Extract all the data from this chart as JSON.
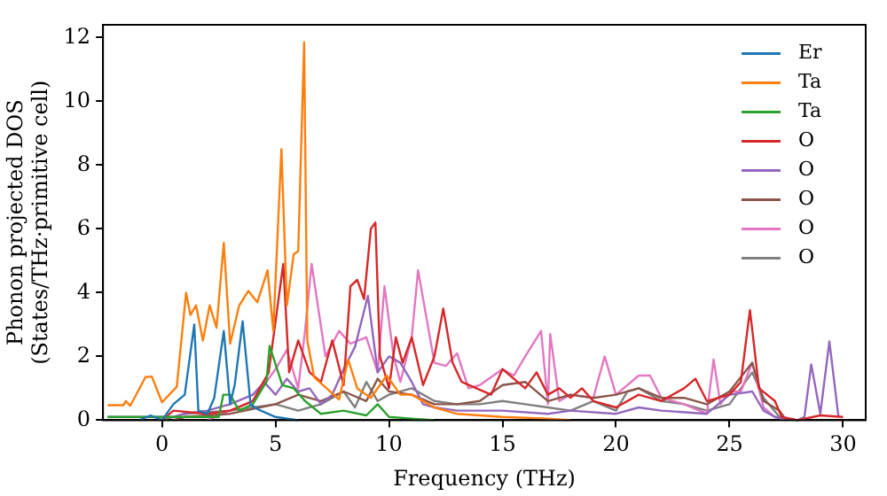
{
  "chart_data": {
    "type": "line",
    "xlabel": "Frequency (THz)",
    "ylabel": "Phonon projected DOS\n(States/THz·primitive cell)",
    "xlim": [
      -2.6,
      31
    ],
    "ylim": [
      0,
      12.4
    ],
    "xticks": [
      0,
      5,
      10,
      15,
      20,
      25,
      30
    ],
    "yticks": [
      0,
      2,
      4,
      6,
      8,
      10,
      12
    ],
    "legend": "top right",
    "marker": "none",
    "line_style": "solid",
    "series": [
      {
        "name": "Er",
        "color": "#1f77b4",
        "x": [
          -1,
          -0.5,
          0,
          0.5,
          1,
          1.42,
          1.6,
          2,
          2.3,
          2.72,
          3,
          3.2,
          3.55,
          3.9,
          4.2,
          5,
          6
        ],
        "values": [
          0,
          0.15,
          0,
          0.5,
          0.8,
          3.0,
          0.3,
          0.2,
          0.7,
          2.8,
          0.5,
          1.1,
          3.1,
          0.5,
          0.35,
          0.1,
          0
        ]
      },
      {
        "name": "Ta",
        "color": "#ff7f0e",
        "x": [
          -2.4,
          -1.7,
          -1.6,
          -1.4,
          -0.73,
          -0.45,
          0,
          0.65,
          1.06,
          1.25,
          1.5,
          1.8,
          2.1,
          2.4,
          2.72,
          3,
          3.4,
          3.8,
          4.2,
          4.65,
          4.9,
          5.26,
          5.5,
          5.8,
          6,
          6.26,
          6.4,
          6.7,
          7.25,
          7.8,
          8.2,
          8.6,
          9.2,
          9.9,
          10.5,
          11,
          12,
          13,
          15,
          17,
          18
        ],
        "values": [
          0.47,
          0.47,
          0.6,
          0.45,
          1.35,
          1.37,
          0.56,
          1.05,
          4.0,
          3.3,
          3.6,
          2.5,
          3.6,
          2.9,
          5.56,
          2.4,
          3.6,
          4.05,
          3.7,
          4.7,
          2.8,
          8.5,
          3.6,
          5.2,
          5.3,
          11.85,
          2.5,
          1.35,
          1.0,
          0.65,
          1.9,
          1.0,
          0.7,
          1.4,
          0.8,
          0.8,
          0.4,
          0.2,
          0.1,
          0.05,
          0
        ]
      },
      {
        "name": "Ta",
        "color": "#2ca02c",
        "x": [
          -2.4,
          2.5,
          2.7,
          3,
          3.4,
          4,
          4.6,
          4.74,
          5.3,
          5.8,
          6.3,
          7,
          8,
          9,
          9.5,
          10,
          11,
          12
        ],
        "values": [
          0.1,
          0.1,
          0.8,
          0.8,
          0.3,
          0.5,
          1.2,
          2.33,
          1.1,
          1.0,
          0.6,
          0.2,
          0.3,
          0.15,
          0.5,
          0.1,
          0.05,
          0
        ]
      },
      {
        "name": "O",
        "color": "#d62728",
        "x": [
          0,
          0.5,
          2,
          3,
          4,
          4.7,
          5.34,
          5.6,
          6,
          6.5,
          7,
          7.5,
          8,
          8.3,
          8.6,
          8.9,
          9.2,
          9.4,
          9.6,
          10,
          10.3,
          10.6,
          11,
          11.5,
          12,
          12.39,
          12.8,
          13.2,
          14.5,
          15,
          16,
          16.5,
          17,
          17.5,
          18,
          18.5,
          19,
          20,
          21,
          22,
          23,
          23.5,
          24,
          25,
          25.5,
          25.9,
          26.3,
          27,
          27.3,
          28,
          29,
          30
        ],
        "values": [
          0,
          0.3,
          0.2,
          0.3,
          0.6,
          1.5,
          4.9,
          1.5,
          2.5,
          1.5,
          1.2,
          2.5,
          1.1,
          4.2,
          4.4,
          3.8,
          6.0,
          6.2,
          2.0,
          1.0,
          2.6,
          1.8,
          2.6,
          1.1,
          2.0,
          3.5,
          1.8,
          1.2,
          0.8,
          1.6,
          1.0,
          1.5,
          0.8,
          1.0,
          0.7,
          1.0,
          0.6,
          0.4,
          0.8,
          0.6,
          1.0,
          1.3,
          0.6,
          0.8,
          1.2,
          3.45,
          1.0,
          0.6,
          0.1,
          0,
          0.15,
          0.1
        ]
      },
      {
        "name": "O",
        "color": "#9467bd",
        "x": [
          -2.4,
          0.5,
          1,
          2,
          3,
          4,
          4.5,
          5,
          5.5,
          6,
          6.5,
          7,
          7.5,
          8,
          8.5,
          9.07,
          9.5,
          10,
          10.5,
          11,
          11.5,
          12,
          13,
          15,
          17,
          18,
          20,
          21,
          22,
          24,
          25,
          26,
          26.5,
          27,
          28,
          28.3,
          28.6,
          29,
          29.4,
          29.8
        ],
        "values": [
          0.1,
          0.1,
          0.2,
          0.3,
          0.5,
          0.8,
          1.2,
          0.8,
          1.3,
          0.9,
          1.0,
          0.5,
          0.8,
          1.6,
          2.3,
          3.9,
          1.5,
          2.0,
          1.8,
          1.2,
          0.5,
          0.4,
          0.3,
          0.3,
          0.2,
          0.3,
          0.2,
          0.4,
          0.3,
          0.2,
          0.8,
          0.9,
          0.3,
          0.1,
          0,
          0.1,
          1.75,
          0.2,
          2.47,
          0.1
        ]
      },
      {
        "name": "O",
        "color": "#8c564b",
        "x": [
          0.5,
          1,
          3,
          5,
          6,
          7,
          8,
          9,
          9.5,
          10,
          11,
          12,
          13,
          14,
          15,
          16,
          17,
          18,
          19,
          20,
          21,
          22,
          23,
          24,
          25,
          26,
          26.5,
          27.2,
          27.5
        ],
        "values": [
          0,
          0.1,
          0.2,
          0.5,
          0.8,
          0.6,
          0.9,
          0.6,
          1.3,
          0.9,
          0.8,
          0.5,
          0.5,
          0.6,
          1.1,
          1.2,
          0.6,
          0.8,
          0.7,
          0.8,
          1.0,
          0.7,
          0.7,
          0.5,
          0.9,
          1.8,
          0.6,
          0.3,
          0
        ]
      },
      {
        "name": "O",
        "color": "#e377c2",
        "x": [
          2,
          3,
          4,
          5,
          5.5,
          6,
          6.3,
          6.59,
          7.2,
          7.8,
          8.3,
          9,
          9.5,
          9.8,
          10.2,
          10.5,
          11,
          11.28,
          12,
          12.5,
          13,
          13.5,
          14,
          15,
          15.5,
          16,
          16.7,
          17,
          17.1,
          17.5,
          18,
          19,
          19.5,
          20,
          21,
          21.5,
          22,
          23,
          24,
          24.3,
          24.6,
          25,
          25.5,
          26,
          26.5,
          27,
          27.5
        ],
        "values": [
          0,
          0.3,
          0.6,
          1.6,
          2.2,
          1.0,
          2.8,
          4.9,
          2.0,
          2.8,
          2.4,
          2.6,
          1.5,
          4.2,
          2.0,
          1.2,
          2.6,
          4.7,
          1.8,
          1.7,
          2.1,
          1.0,
          1.1,
          1.6,
          1.4,
          2.0,
          2.8,
          0.5,
          2.7,
          0.6,
          0.8,
          0.7,
          2.0,
          0.8,
          1.4,
          1.4,
          0.7,
          0.5,
          0.2,
          1.9,
          0.5,
          0.9,
          0.9,
          1.8,
          0.4,
          0.1,
          0
        ]
      },
      {
        "name": "O",
        "color": "#7f7f7f",
        "x": [
          0,
          1,
          3,
          5,
          6,
          7,
          8,
          8.5,
          9,
          9.5,
          10,
          11,
          12,
          13,
          14,
          15,
          16,
          17,
          18,
          19,
          20,
          20.5,
          21,
          22,
          23,
          24,
          25,
          26,
          26.5,
          27.2,
          27.5
        ],
        "values": [
          0,
          0.2,
          0.3,
          0.5,
          0.3,
          0.5,
          0.9,
          0.4,
          1.2,
          0.6,
          0.8,
          1.0,
          0.6,
          0.5,
          0.5,
          0.6,
          0.5,
          0.4,
          0.3,
          0.6,
          0.3,
          0.9,
          1.0,
          0.6,
          0.5,
          0.3,
          0.5,
          1.5,
          0.7,
          0.1,
          0
        ]
      }
    ]
  }
}
